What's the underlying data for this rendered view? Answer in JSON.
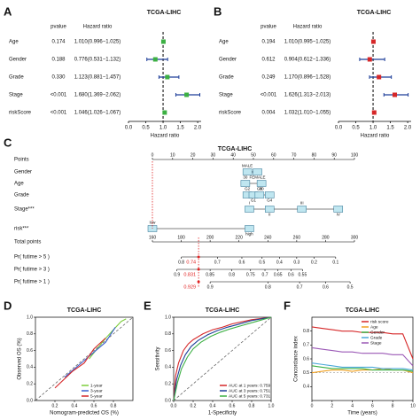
{
  "chart_data": [
    {
      "type": "forest",
      "panel_label": "A",
      "title": "TCGA-LIHC",
      "column_headers": [
        "pvalue",
        "Hazard ratio"
      ],
      "categories": [
        "Age",
        "Gender",
        "Grade",
        "Stage",
        "riskScore"
      ],
      "pvalues": [
        "0.174",
        "0.188",
        "0.330",
        "<0.001",
        "<0.001"
      ],
      "hr_labels": [
        "1.010(0.996−1.025)",
        "0.776(0.531−1.132)",
        "1.123(0.881−1.457)",
        "1.680(1.369−2.062)",
        "1.046(1.026−1.067)"
      ],
      "values": [
        1.01,
        0.776,
        1.123,
        1.68,
        1.046
      ],
      "lower": [
        0.996,
        0.531,
        0.881,
        1.369,
        1.026
      ],
      "upper": [
        1.025,
        1.132,
        1.457,
        2.062,
        1.067
      ],
      "xlim": [
        0,
        2.1
      ],
      "xticks": [
        {
          "value": 0,
          "label": "0.0"
        },
        {
          "value": 0.5,
          "label": "0.5"
        },
        {
          "value": 1,
          "label": "1.0"
        },
        {
          "value": 1.5,
          "label": "1.5"
        },
        {
          "value": 2,
          "label": "2.0"
        }
      ],
      "xlabel": "Hazard ratio",
      "reference": 1,
      "color": "#3cb043",
      "bar_color": "#1f3f99"
    },
    {
      "type": "forest",
      "panel_label": "B",
      "title": "TCGA-LIHC",
      "column_headers": [
        "pvalue",
        "Hazard ratio"
      ],
      "categories": [
        "Age",
        "Gender",
        "Grade",
        "Stage",
        "riskScore"
      ],
      "pvalues": [
        "0.194",
        "0.612",
        "0.249",
        "<0.001",
        "0.004"
      ],
      "hr_labels": [
        "1.010(0.995−1.025)",
        "0.904(0.612−1.336)",
        "1.170(0.896−1.528)",
        "1.626(1.313−2.013)",
        "1.032(1.010−1.055)"
      ],
      "values": [
        1.01,
        0.904,
        1.17,
        1.626,
        1.032
      ],
      "lower": [
        0.995,
        0.612,
        0.896,
        1.313,
        1.01
      ],
      "upper": [
        1.025,
        1.336,
        1.528,
        2.013,
        1.055
      ],
      "xlim": [
        0,
        2.1
      ],
      "xticks": [
        {
          "value": 0,
          "label": "0.0"
        },
        {
          "value": 0.5,
          "label": "0.5"
        },
        {
          "value": 1,
          "label": "1.0"
        },
        {
          "value": 1.5,
          "label": "1.5"
        },
        {
          "value": 2,
          "label": "2.0"
        }
      ],
      "xlabel": "Hazard ratio",
      "reference": 1,
      "color": "#d62728",
      "bar_color": "#1f3f99"
    },
    {
      "type": "nomogram",
      "panel_label": "C",
      "title": "TCGA-LIHC",
      "points_label": "Points",
      "points_lim": [
        0,
        100
      ],
      "points_ticks": [
        0,
        10,
        20,
        30,
        40,
        50,
        60,
        70,
        80,
        90,
        100
      ],
      "variables": [
        {
          "name": "Gender",
          "levels": [
            "MALE",
            "FEMALE"
          ],
          "points": [
            47,
            52
          ]
        },
        {
          "name": "Age",
          "levels": [
            "30",
            "80"
          ],
          "points": [
            46,
            54
          ]
        },
        {
          "name": "Grade",
          "levels": [
            "G2",
            "G1",
            "G3",
            "G4"
          ],
          "points": [
            47,
            50,
            53,
            58
          ]
        },
        {
          "name": "Stage***",
          "levels": [
            "I",
            "II",
            "III",
            "IV"
          ],
          "points": [
            48,
            58,
            74,
            92
          ]
        },
        {
          "name": "risk***",
          "levels": [
            "low",
            "high"
          ],
          "points": [
            0,
            48
          ]
        }
      ],
      "total_points_label": "Total points",
      "total_points_lim": [
        160,
        300
      ],
      "total_points_ticks": [
        160,
        180,
        200,
        220,
        240,
        260,
        280,
        300
      ],
      "probabilities": [
        {
          "label": "Pr( futime > 5 )",
          "ticks": [
            0.8,
            0.7,
            0.6,
            0.5,
            0.4,
            0.3,
            0.2,
            0.1
          ],
          "tick_points": [
            180,
            205,
            222,
            236,
            248,
            260,
            272,
            287
          ]
        },
        {
          "label": "Pr( futime > 3 )",
          "ticks": [
            0.9,
            0.85,
            0.8,
            0.75,
            0.7,
            0.65,
            0.6,
            0.55
          ],
          "tick_points": [
            177,
            200,
            215,
            228,
            238,
            247,
            256,
            264
          ]
        },
        {
          "label": "Pr( futime > 1 )",
          "ticks": [
            0.9,
            0.8,
            0.7,
            0.6,
            0.5
          ],
          "tick_points": [
            200,
            240,
            262,
            280,
            297
          ]
        }
      ],
      "highlight_values": [
        0.74,
        0.831,
        0.929
      ],
      "selected_total_points": 192,
      "highlight_color": "#e02020",
      "box_color": "#bfe6f0"
    },
    {
      "type": "line",
      "panel_label": "D",
      "title": "TCGA-LIHC",
      "xlabel": "Nomogram-predicted OS (%)",
      "ylabel": "Observed OS (%)",
      "xlim": [
        0,
        1
      ],
      "ylim": [
        0,
        1
      ],
      "xticks": [
        {
          "value": 0.2,
          "label": "0.2"
        },
        {
          "value": 0.4,
          "label": "0.4"
        },
        {
          "value": 0.6,
          "label": "0.6"
        },
        {
          "value": 0.8,
          "label": "0.8"
        }
      ],
      "yticks": [
        {
          "value": 0,
          "label": "0.0"
        },
        {
          "value": 0.2,
          "label": "0.2"
        },
        {
          "value": 0.4,
          "label": "0.4"
        },
        {
          "value": 0.6,
          "label": "0.6"
        },
        {
          "value": 0.8,
          "label": "0.8"
        },
        {
          "value": 1,
          "label": "1.0"
        }
      ],
      "diagonal": true,
      "legend": "bottom-right",
      "series": [
        {
          "name": "1-year",
          "color": "#7ccd3c",
          "x": [
            0.55,
            0.7,
            0.8,
            0.88,
            0.93
          ],
          "values": [
            0.5,
            0.72,
            0.85,
            0.95,
            0.98
          ]
        },
        {
          "name": "3-year",
          "color": "#3a5fcd",
          "x": [
            0.3,
            0.5,
            0.62,
            0.72,
            0.82
          ],
          "values": [
            0.28,
            0.48,
            0.6,
            0.7,
            0.88
          ]
        },
        {
          "name": "5-year",
          "color": "#d62728",
          "x": [
            0.2,
            0.38,
            0.5,
            0.6,
            0.72
          ],
          "values": [
            0.15,
            0.35,
            0.45,
            0.62,
            0.75
          ]
        }
      ]
    },
    {
      "type": "line",
      "panel_label": "E",
      "title": "TCGA-LIHC",
      "xlabel": "1-Specificity",
      "ylabel": "Sensitivity",
      "xlim": [
        0,
        1
      ],
      "ylim": [
        0,
        1
      ],
      "xticks": [
        {
          "value": 0,
          "label": "0.0"
        },
        {
          "value": 0.2,
          "label": "0.2"
        },
        {
          "value": 0.4,
          "label": "0.4"
        },
        {
          "value": 0.6,
          "label": "0.6"
        },
        {
          "value": 0.8,
          "label": "0.8"
        },
        {
          "value": 1,
          "label": "1.0"
        }
      ],
      "yticks": [
        {
          "value": 0,
          "label": "0.0"
        },
        {
          "value": 0.2,
          "label": "0.2"
        },
        {
          "value": 0.4,
          "label": "0.4"
        },
        {
          "value": 0.6,
          "label": "0.6"
        },
        {
          "value": 0.8,
          "label": "0.8"
        },
        {
          "value": 1,
          "label": "1.0"
        }
      ],
      "diagonal": true,
      "legend": "bottom-right",
      "series": [
        {
          "name": "AUC at 1 years: 0.759",
          "color": "#d62728",
          "x": [
            0,
            0.02,
            0.05,
            0.1,
            0.15,
            0.2,
            0.3,
            0.4,
            0.5,
            0.6,
            0.8,
            1
          ],
          "values": [
            0,
            0.3,
            0.45,
            0.6,
            0.68,
            0.73,
            0.8,
            0.85,
            0.88,
            0.92,
            0.97,
            1
          ]
        },
        {
          "name": "AUC at 3 years: 0.751",
          "color": "#1f3f99",
          "x": [
            0,
            0.03,
            0.07,
            0.12,
            0.18,
            0.25,
            0.35,
            0.45,
            0.55,
            0.65,
            0.8,
            1
          ],
          "values": [
            0,
            0.25,
            0.42,
            0.55,
            0.65,
            0.72,
            0.79,
            0.84,
            0.88,
            0.91,
            0.96,
            1
          ]
        },
        {
          "name": "AUC at 5 years: 0.731",
          "color": "#3cb043",
          "x": [
            0,
            0.04,
            0.08,
            0.14,
            0.2,
            0.28,
            0.38,
            0.48,
            0.58,
            0.7,
            0.85,
            1
          ],
          "values": [
            0,
            0.22,
            0.38,
            0.52,
            0.62,
            0.7,
            0.77,
            0.82,
            0.86,
            0.9,
            0.95,
            1
          ]
        }
      ]
    },
    {
      "type": "line",
      "panel_label": "F",
      "title": "TCGA-LIHC",
      "xlabel": "Time (years)",
      "ylabel": "Concordance index",
      "xlim": [
        0,
        10
      ],
      "ylim": [
        0.3,
        0.9
      ],
      "xticks": [
        0,
        2,
        4,
        6,
        8,
        10
      ],
      "yticks": [
        0.4,
        0.5,
        0.6,
        0.7,
        0.8
      ],
      "reference": 0.5,
      "legend": "top-right",
      "series": [
        {
          "name": "risk score",
          "color": "#d62728",
          "x": [
            0,
            1,
            2,
            3,
            4,
            5,
            6,
            7,
            8,
            9,
            10
          ],
          "values": [
            0.83,
            0.82,
            0.81,
            0.8,
            0.8,
            0.79,
            0.79,
            0.79,
            0.78,
            0.78,
            0.6
          ]
        },
        {
          "name": "Age",
          "color": "#f0a020",
          "x": [
            0,
            1,
            2,
            3,
            4,
            5,
            6,
            7,
            8,
            9,
            10
          ],
          "values": [
            0.5,
            0.51,
            0.52,
            0.52,
            0.51,
            0.52,
            0.52,
            0.53,
            0.52,
            0.52,
            0.5
          ]
        },
        {
          "name": "Gender",
          "color": "#3cb043",
          "x": [
            0,
            1,
            2,
            3,
            4,
            5,
            6,
            7,
            8,
            9,
            10
          ],
          "values": [
            0.55,
            0.54,
            0.53,
            0.53,
            0.53,
            0.53,
            0.52,
            0.52,
            0.52,
            0.52,
            0.51
          ]
        },
        {
          "name": "Grade",
          "color": "#4aa8d8",
          "x": [
            0,
            1,
            2,
            3,
            4,
            5,
            6,
            7,
            8,
            9,
            10
          ],
          "values": [
            0.57,
            0.56,
            0.55,
            0.54,
            0.54,
            0.54,
            0.54,
            0.53,
            0.53,
            0.53,
            0.52
          ]
        },
        {
          "name": "Stage",
          "color": "#9b59b6",
          "x": [
            0,
            1,
            2,
            3,
            4,
            5,
            6,
            7,
            8,
            9,
            10
          ],
          "values": [
            0.68,
            0.67,
            0.66,
            0.65,
            0.65,
            0.64,
            0.64,
            0.64,
            0.63,
            0.63,
            0.55
          ]
        }
      ]
    }
  ]
}
